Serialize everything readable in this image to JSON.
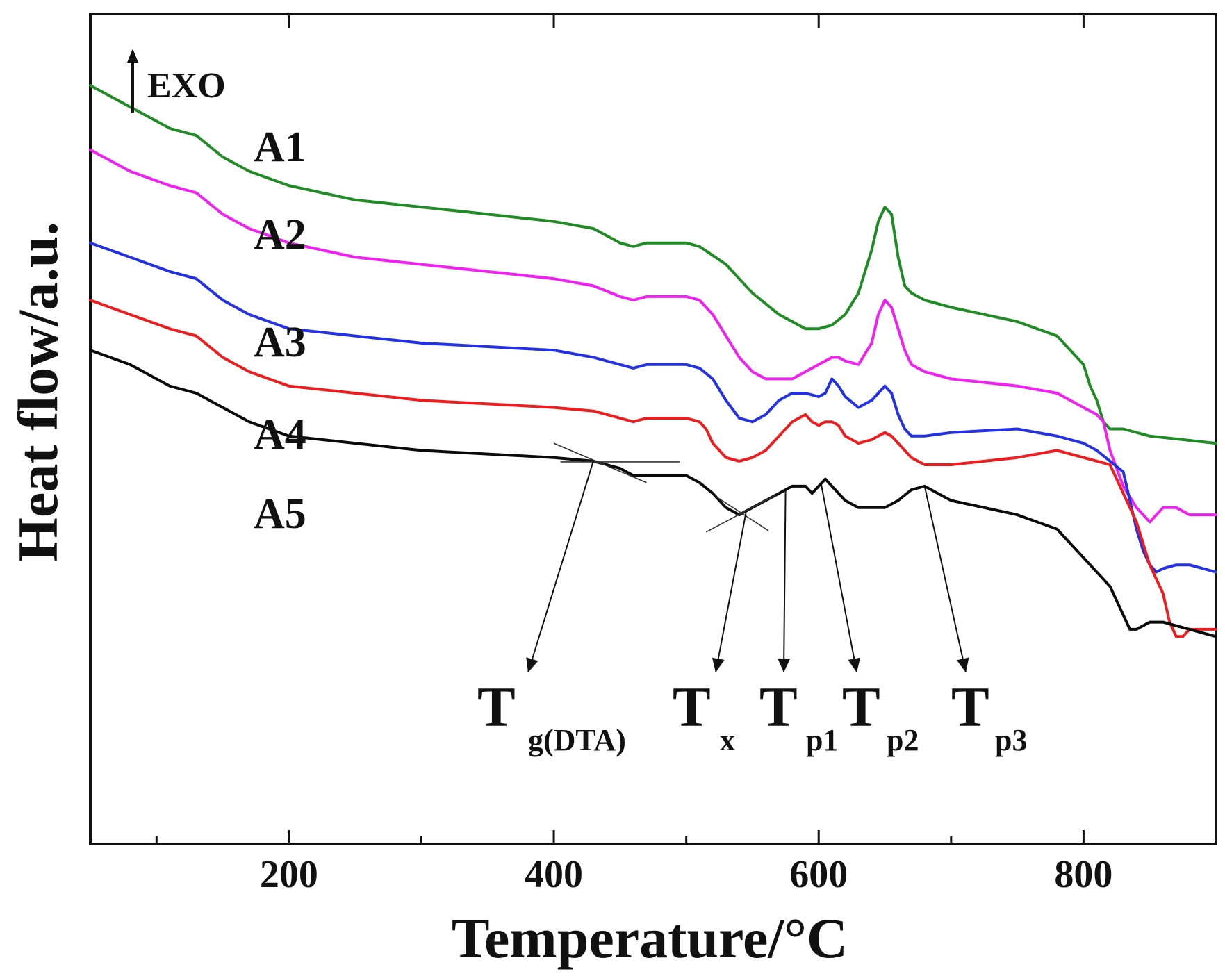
{
  "chart_data": {
    "type": "line",
    "title": "",
    "xlabel": "Temperature/°C",
    "ylabel": "Heat flow/a.u.",
    "xlim": [
      50,
      900
    ],
    "ylim": [
      -15,
      101
    ],
    "x_ticks_major": [
      200,
      400,
      600,
      800
    ],
    "x_ticks_minor": [
      100,
      300,
      500,
      700
    ],
    "tick_labels": [
      "200",
      "400",
      "600",
      "800"
    ],
    "grid": false,
    "legend": "none",
    "exo_indicator": {
      "label": "EXO",
      "direction": "up"
    },
    "series": [
      {
        "name": "A1",
        "color": "#1e8c23",
        "x": [
          50,
          80,
          110,
          130,
          150,
          170,
          200,
          250,
          300,
          350,
          400,
          430,
          450,
          460,
          470,
          500,
          510,
          530,
          550,
          570,
          590,
          600,
          610,
          620,
          630,
          640,
          645,
          650,
          655,
          660,
          665,
          670,
          680,
          700,
          750,
          780,
          800,
          805,
          810,
          815,
          820,
          830,
          850,
          900
        ],
        "y": [
          91,
          88,
          85,
          84,
          81,
          79,
          77,
          75,
          74,
          73,
          72,
          71,
          69,
          68.5,
          69,
          69,
          68.5,
          66,
          62,
          59,
          57,
          57,
          57.5,
          59,
          62,
          68,
          72,
          74,
          73,
          67,
          63,
          62,
          61,
          60,
          58,
          56,
          52,
          49,
          47,
          44,
          43,
          43,
          42,
          41
        ]
      },
      {
        "name": "A2",
        "color": "#f21ff2",
        "x": [
          50,
          80,
          110,
          130,
          150,
          170,
          200,
          250,
          300,
          350,
          400,
          430,
          450,
          460,
          470,
          500,
          510,
          520,
          530,
          540,
          550,
          560,
          570,
          580,
          590,
          600,
          610,
          615,
          620,
          630,
          640,
          645,
          650,
          655,
          660,
          665,
          670,
          680,
          700,
          750,
          780,
          800,
          810,
          815,
          820,
          830,
          840,
          850,
          860,
          870,
          880,
          900
        ],
        "y": [
          82,
          79,
          77,
          76,
          73,
          71,
          69,
          67,
          66,
          65,
          64,
          63,
          61.5,
          61,
          61.5,
          61.5,
          61,
          59,
          56,
          53,
          51,
          50,
          50,
          50,
          51,
          52,
          53,
          53,
          52.5,
          52,
          55,
          59,
          61,
          60,
          57,
          54,
          52,
          51,
          50,
          49,
          48,
          46,
          45,
          44,
          40,
          35,
          32,
          30,
          32,
          32,
          31,
          31
        ]
      },
      {
        "name": "A3",
        "color": "#2230e6",
        "x": [
          50,
          80,
          110,
          130,
          150,
          170,
          200,
          250,
          300,
          350,
          400,
          430,
          450,
          460,
          470,
          500,
          510,
          520,
          530,
          540,
          550,
          560,
          570,
          580,
          590,
          600,
          605,
          610,
          615,
          620,
          630,
          640,
          645,
          650,
          655,
          660,
          665,
          670,
          680,
          700,
          750,
          780,
          800,
          810,
          830,
          835,
          840,
          845,
          850,
          855,
          860,
          870,
          880,
          900
        ],
        "y": [
          69,
          67,
          65,
          64,
          61,
          59,
          57,
          56,
          55,
          54.5,
          54,
          53,
          52,
          51.5,
          52,
          52,
          51.5,
          50,
          47,
          44.5,
          44,
          45,
          47,
          48,
          48,
          47.5,
          48,
          50,
          49,
          47.5,
          46,
          47,
          48,
          49,
          48,
          45,
          43,
          42,
          42,
          42.5,
          43,
          42,
          41,
          40,
          37,
          33,
          29,
          26,
          24,
          23,
          23.5,
          24,
          24,
          23
        ]
      },
      {
        "name": "A4",
        "color": "#ee1c1c",
        "x": [
          50,
          80,
          110,
          130,
          150,
          170,
          200,
          250,
          300,
          350,
          400,
          430,
          450,
          460,
          470,
          500,
          510,
          515,
          520,
          530,
          540,
          550,
          560,
          570,
          580,
          590,
          595,
          600,
          605,
          610,
          615,
          620,
          630,
          640,
          645,
          650,
          655,
          660,
          670,
          680,
          700,
          750,
          780,
          800,
          820,
          830,
          840,
          850,
          860,
          865,
          870,
          875,
          880,
          890,
          900
        ],
        "y": [
          61,
          59,
          57,
          56,
          53,
          51,
          49,
          48,
          47,
          46.5,
          46,
          45.5,
          44.5,
          44,
          44.5,
          44.5,
          44,
          43,
          41,
          39,
          38.5,
          39,
          40,
          42,
          44,
          45,
          44,
          43.5,
          44,
          44,
          43.5,
          42,
          41,
          41.5,
          42,
          42.5,
          42,
          41,
          39,
          38,
          38,
          39,
          40,
          39,
          38,
          34,
          30,
          24,
          20,
          16,
          14,
          14,
          15,
          15,
          15
        ]
      },
      {
        "name": "A5",
        "color": "#0a0a0a",
        "x": [
          50,
          80,
          110,
          130,
          150,
          170,
          200,
          250,
          300,
          350,
          400,
          430,
          440,
          450,
          460,
          470,
          500,
          510,
          520,
          530,
          540,
          550,
          560,
          570,
          580,
          590,
          595,
          600,
          605,
          610,
          620,
          630,
          640,
          650,
          660,
          670,
          680,
          690,
          700,
          750,
          780,
          800,
          810,
          820,
          830,
          835,
          840,
          850,
          860,
          900
        ],
        "y": [
          54,
          52,
          49,
          48,
          46,
          44,
          42,
          41,
          40,
          39.5,
          39,
          38.5,
          38,
          37.5,
          36.5,
          36.5,
          36.5,
          35.5,
          34,
          32,
          31,
          32,
          33,
          34,
          35,
          35,
          34,
          35,
          36,
          35,
          33,
          32,
          32,
          32,
          33,
          34.5,
          35,
          34,
          33,
          31,
          29,
          25,
          23,
          21,
          17,
          15,
          15,
          16,
          16,
          14
        ]
      }
    ],
    "series_labels": [
      "A1",
      "A2",
      "A3",
      "A4",
      "A5"
    ],
    "annotations": [
      {
        "id": "tg",
        "base": "T",
        "sub": "g(DTA)",
        "target_x": 430,
        "target_y": 38.6
      },
      {
        "id": "tx",
        "base": "T",
        "sub": "x",
        "target_x": 545,
        "target_y": 31.2
      },
      {
        "id": "tp1",
        "base": "T",
        "sub": "p1",
        "target_x": 575,
        "target_y": 34.4
      },
      {
        "id": "tp2",
        "base": "T",
        "sub": "p2",
        "target_x": 602,
        "target_y": 35.2
      },
      {
        "id": "tp3",
        "base": "T",
        "sub": "p3",
        "target_x": 680,
        "target_y": 35
      }
    ]
  }
}
